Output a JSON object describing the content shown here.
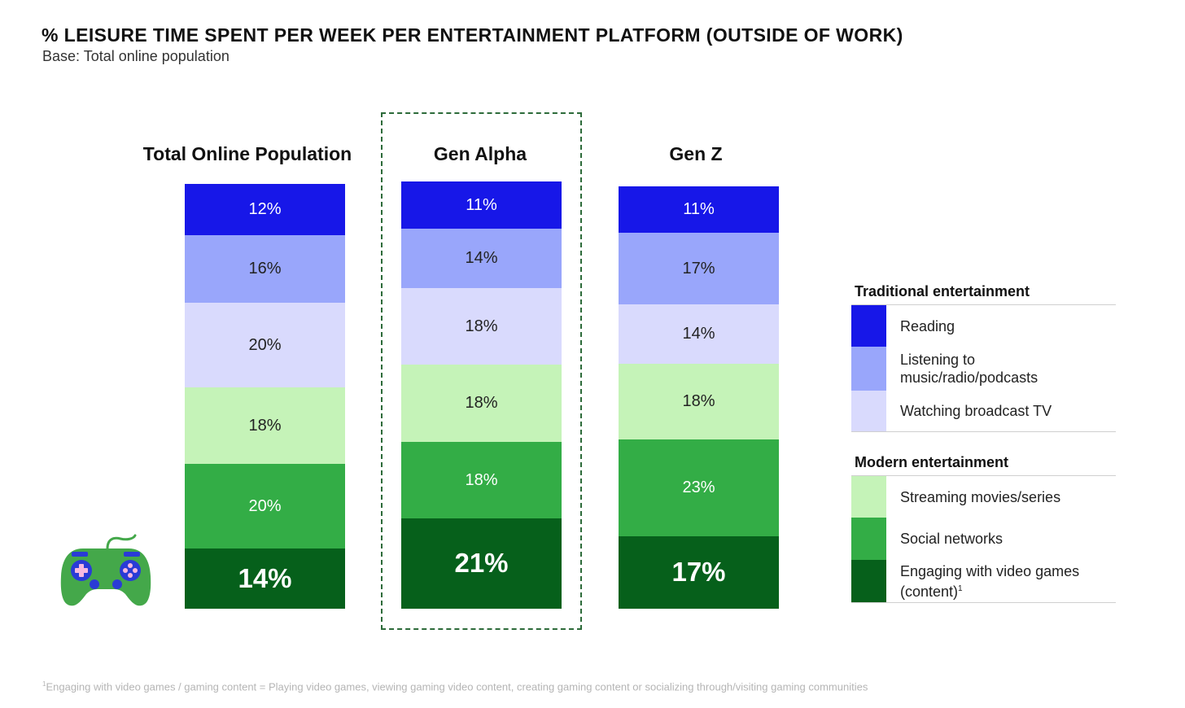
{
  "header": {
    "title": "% LEISURE TIME SPENT PER WEEK PER ENTERTAINMENT PLATFORM (OUTSIDE OF WORK)",
    "subtitle": "Base: Total online population"
  },
  "footnote": {
    "marker": "1",
    "text": "Engaging with video games / gaming content = Playing video games, viewing gaming video content, creating gaming content or socializing through/visiting gaming communities"
  },
  "chart_data": {
    "type": "bar",
    "stacked": true,
    "normalized": true,
    "title": "% LEISURE TIME SPENT PER WEEK PER ENTERTAINMENT PLATFORM (OUTSIDE OF WORK)",
    "subtitle": "Base: Total online population",
    "categories": [
      "Total Online Population",
      "Gen Alpha",
      "Gen Z"
    ],
    "highlighted_category": "Gen Alpha",
    "unit": "%",
    "series": [
      {
        "name": "Reading",
        "group": "Traditional entertainment",
        "color": "#1717e8",
        "values": [
          12,
          11,
          11
        ],
        "labels": [
          "12%",
          "11%",
          "11%"
        ]
      },
      {
        "name": "Listening to music/radio/podcasts",
        "group": "Traditional entertainment",
        "color": "#99a6fb",
        "values": [
          16,
          14,
          17
        ],
        "labels": [
          "16%",
          "14%",
          "17%"
        ]
      },
      {
        "name": "Watching broadcast TV",
        "group": "Traditional entertainment",
        "color": "#d9dafd",
        "values": [
          20,
          18,
          14
        ],
        "labels": [
          "20%",
          "18%",
          "14%"
        ]
      },
      {
        "name": "Streaming movies/series",
        "group": "Modern entertainment",
        "color": "#c5f3b8",
        "values": [
          18,
          18,
          18
        ],
        "labels": [
          "18%",
          "18%",
          "18%"
        ]
      },
      {
        "name": "Social networks",
        "group": "Modern entertainment",
        "color": "#33ad46",
        "values": [
          20,
          18,
          23
        ],
        "labels": [
          "20%",
          "18%",
          "23%"
        ]
      },
      {
        "name": "Engaging with video games (content)",
        "group": "Modern entertainment",
        "color": "#06601b",
        "values": [
          14,
          21,
          17
        ],
        "labels": [
          "14%",
          "21%",
          "17%"
        ],
        "emphasized": true
      }
    ],
    "legend": {
      "placement": "right",
      "groups": [
        {
          "title": "Traditional entertainment",
          "items": [
            "Reading",
            "Listening to music/radio/podcasts",
            "Watching broadcast TV"
          ]
        },
        {
          "title": "Modern entertainment",
          "items": [
            "Streaming movies/series",
            "Social networks",
            "Engaging with video games (content)"
          ]
        }
      ]
    }
  },
  "legend_labels": {
    "reading": "Reading",
    "listening_line1": "Listening to",
    "listening_line2": "music/radio/podcasts",
    "tv": "Watching broadcast TV",
    "streaming": "Streaming movies/series",
    "social": "Social networks",
    "games_line1": "Engaging with video games",
    "games_line2": "(content)",
    "games_marker": "1"
  },
  "icons": {
    "gamepad": "gamepad-icon"
  }
}
